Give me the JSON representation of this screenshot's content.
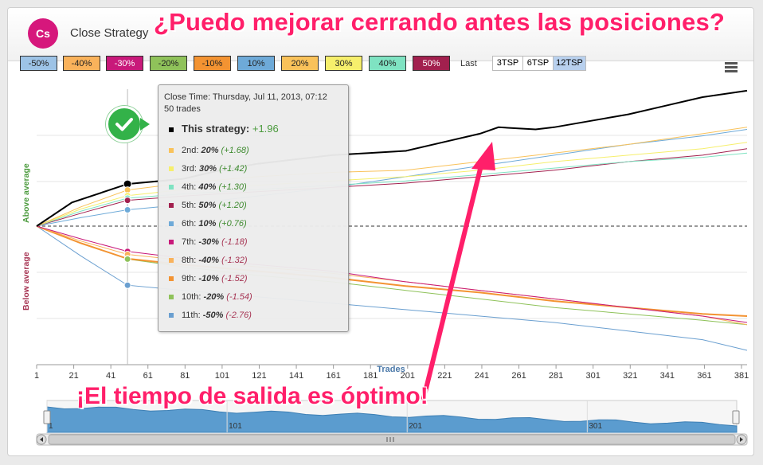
{
  "header": {
    "avatar_text": "Cs",
    "title": "Close Strategy",
    "banner": "¿Puedo mejorar cerrando antes las posiciones?"
  },
  "percent_buttons": [
    {
      "label": "-50%",
      "color": "#9dc3e6",
      "selected": true
    },
    {
      "label": "-40%",
      "color": "#f9b25b",
      "selected": true
    },
    {
      "label": "-30%",
      "color": "#c8197a",
      "selected": true
    },
    {
      "label": "-20%",
      "color": "#8fc25a",
      "selected": true
    },
    {
      "label": "-10%",
      "color": "#f39332",
      "selected": true
    },
    {
      "label": "10%",
      "color": "#6eaad8",
      "selected": true
    },
    {
      "label": "20%",
      "color": "#f9c25a",
      "selected": true
    },
    {
      "label": "30%",
      "color": "#f6ef6c",
      "selected": true
    },
    {
      "label": "40%",
      "color": "#7fe3c2",
      "selected": true
    },
    {
      "label": "50%",
      "color": "#a2204e",
      "selected": true
    }
  ],
  "period_selector": {
    "label": "Last",
    "options": [
      {
        "label": "3TSP",
        "active": false
      },
      {
        "label": "6TSP",
        "active": false
      },
      {
        "label": "12TSP",
        "active": true
      }
    ]
  },
  "axis_labels": {
    "above": "Above average",
    "below": "Below average",
    "x_title": "Trades"
  },
  "tooltip": {
    "time": "Close Time: Thursday, Jul 11, 2013, 07:12",
    "trades": "50 trades",
    "rows": [
      {
        "prefix": "This strategy: ",
        "pct": "",
        "value": "+1.96",
        "color": "#000000",
        "sign": "pos"
      },
      {
        "prefix": "2nd: ",
        "pct": "20%",
        "value": "(+1.68)",
        "color": "#f9c25a",
        "sign": "pos"
      },
      {
        "prefix": "3rd: ",
        "pct": "30%",
        "value": "(+1.42)",
        "color": "#f6ef6c",
        "sign": "pos"
      },
      {
        "prefix": "4th: ",
        "pct": "40%",
        "value": "(+1.30)",
        "color": "#7fe3c2",
        "sign": "pos"
      },
      {
        "prefix": "5th: ",
        "pct": "50%",
        "value": "(+1.20)",
        "color": "#a2204e",
        "sign": "pos"
      },
      {
        "prefix": "6th: ",
        "pct": "10%",
        "value": "(+0.76)",
        "color": "#6eaad8",
        "sign": "pos"
      },
      {
        "prefix": "7th: ",
        "pct": "-30%",
        "value": "(-1.18)",
        "color": "#c8197a",
        "sign": "neg"
      },
      {
        "prefix": "8th: ",
        "pct": "-40%",
        "value": "(-1.32)",
        "color": "#f9b25b",
        "sign": "neg"
      },
      {
        "prefix": "9th: ",
        "pct": "-10%",
        "value": "(-1.52)",
        "color": "#f39332",
        "sign": "neg"
      },
      {
        "prefix": "10th: ",
        "pct": "-20%",
        "value": "(-1.54)",
        "color": "#8fc25a",
        "sign": "neg"
      },
      {
        "prefix": "11th: ",
        "pct": "-50%",
        "value": "(-2.76)",
        "color": "#6a9fd0",
        "sign": "neg"
      }
    ]
  },
  "annotation": "¡El tiempo de salida es óptimo!",
  "chart_data": {
    "type": "line",
    "xlabel": "Trades",
    "x_ticks": [
      1,
      21,
      41,
      61,
      81,
      101,
      121,
      141,
      161,
      181,
      201,
      221,
      241,
      261,
      281,
      301,
      321,
      341,
      361,
      381
    ],
    "navigator_ticks": [
      1,
      101,
      201,
      301
    ],
    "x_range": [
      1,
      384
    ],
    "y_range": [
      -5.8,
      6.0
    ],
    "highlight_x": 50,
    "series": [
      {
        "name": "This strategy",
        "color": "#000000",
        "width": 2,
        "x": [
          1,
          20,
          50,
          80,
          100,
          120,
          140,
          160,
          180,
          200,
          220,
          240,
          250,
          270,
          280,
          300,
          320,
          340,
          360,
          384
        ],
        "y": [
          0,
          1.1,
          1.96,
          2.2,
          2.6,
          2.9,
          3.1,
          3.3,
          3.4,
          3.5,
          3.9,
          4.3,
          4.6,
          4.5,
          4.6,
          4.9,
          5.2,
          5.6,
          6.0,
          6.3
        ]
      },
      {
        "name": "20%",
        "color": "#f9c25a",
        "width": 1,
        "x": [
          1,
          25,
          50,
          80,
          120,
          160,
          200,
          240,
          280,
          320,
          360,
          384
        ],
        "y": [
          0,
          0.9,
          1.68,
          2.0,
          2.3,
          2.5,
          2.6,
          3.0,
          3.4,
          3.8,
          4.3,
          4.6
        ]
      },
      {
        "name": "30%",
        "color": "#f6ef6c",
        "width": 1,
        "x": [
          1,
          25,
          50,
          80,
          120,
          160,
          200,
          240,
          280,
          320,
          360,
          384
        ],
        "y": [
          0,
          0.8,
          1.42,
          1.7,
          1.9,
          2.1,
          2.3,
          2.6,
          3.0,
          3.3,
          3.6,
          3.9
        ]
      },
      {
        "name": "40%",
        "color": "#7fe3c2",
        "width": 1,
        "x": [
          1,
          25,
          50,
          80,
          120,
          160,
          200,
          240,
          280,
          320,
          360,
          384
        ],
        "y": [
          0,
          0.7,
          1.3,
          1.5,
          1.7,
          1.9,
          2.1,
          2.4,
          2.7,
          3.0,
          3.2,
          3.4
        ]
      },
      {
        "name": "50%",
        "color": "#a2204e",
        "width": 1,
        "x": [
          1,
          25,
          50,
          80,
          120,
          160,
          200,
          240,
          280,
          320,
          360,
          384
        ],
        "y": [
          0,
          0.6,
          1.2,
          1.4,
          1.6,
          1.8,
          2.0,
          2.3,
          2.6,
          3.0,
          3.3,
          3.6
        ]
      },
      {
        "name": "10%",
        "color": "#6eaad8",
        "width": 1,
        "x": [
          1,
          25,
          50,
          80,
          120,
          160,
          200,
          240,
          280,
          320,
          360,
          384
        ],
        "y": [
          0,
          0.4,
          0.76,
          1.0,
          1.4,
          1.8,
          2.3,
          2.8,
          3.3,
          3.8,
          4.2,
          4.5
        ]
      },
      {
        "name": "-30%",
        "color": "#c8197a",
        "width": 1,
        "x": [
          1,
          25,
          50,
          80,
          120,
          160,
          200,
          240,
          280,
          320,
          360,
          384
        ],
        "y": [
          0,
          -0.6,
          -1.18,
          -1.5,
          -1.8,
          -2.1,
          -2.6,
          -3.0,
          -3.4,
          -3.8,
          -4.2,
          -4.5
        ]
      },
      {
        "name": "-40%",
        "color": "#f9b25b",
        "width": 1,
        "x": [
          1,
          25,
          50,
          80,
          120,
          160,
          200,
          240,
          280,
          320,
          360,
          384
        ],
        "y": [
          0,
          -0.7,
          -1.32,
          -1.6,
          -1.9,
          -2.2,
          -2.6,
          -3.0,
          -3.4,
          -3.8,
          -4.2,
          -4.6
        ]
      },
      {
        "name": "-10%",
        "color": "#f39332",
        "width": 2,
        "x": [
          1,
          25,
          50,
          80,
          120,
          160,
          200,
          240,
          280,
          320,
          360,
          384
        ],
        "y": [
          0,
          -0.8,
          -1.52,
          -1.8,
          -2.1,
          -2.4,
          -2.8,
          -3.1,
          -3.5,
          -3.8,
          -4.1,
          -4.2
        ]
      },
      {
        "name": "-20%",
        "color": "#8fc25a",
        "width": 1,
        "x": [
          1,
          25,
          50,
          80,
          120,
          160,
          200,
          240,
          280,
          320,
          360,
          384
        ],
        "y": [
          0,
          -0.8,
          -1.54,
          -1.9,
          -2.3,
          -2.6,
          -3.0,
          -3.4,
          -3.8,
          -4.1,
          -4.4,
          -4.6
        ]
      },
      {
        "name": "-50%",
        "color": "#6a9fd0",
        "width": 1,
        "x": [
          1,
          25,
          50,
          80,
          120,
          160,
          200,
          240,
          280,
          320,
          360,
          384
        ],
        "y": [
          0,
          -1.4,
          -2.76,
          -3.0,
          -3.3,
          -3.6,
          -3.9,
          -4.2,
          -4.5,
          -4.9,
          -5.3,
          -5.8
        ]
      }
    ]
  }
}
